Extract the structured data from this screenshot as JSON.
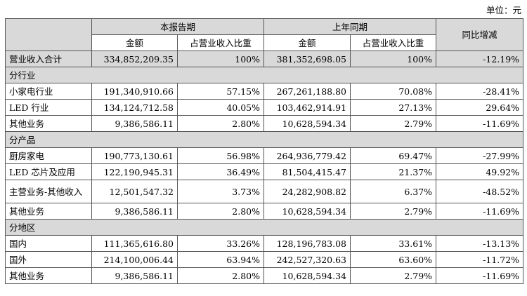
{
  "unit": "单位：元",
  "table": {
    "header": {
      "groups": [
        "本报告期",
        "上年同期"
      ],
      "columns": [
        "金额",
        "占营业收入比重",
        "金额",
        "占营业收入比重"
      ],
      "change": "同比增减"
    },
    "rows": [
      [
        "营业收入合计",
        "334,852,209.35",
        "100%",
        "381,352,698.05",
        "100%",
        "-12.19%"
      ],
      [
        "分行业"
      ],
      [
        "小家电行业",
        "191,340,910.66",
        "57.15%",
        "267,261,188.80",
        "70.08%",
        "-28.41%"
      ],
      [
        "LED 行业",
        "134,124,712.58",
        "40.05%",
        "103,462,914.91",
        "27.13%",
        "29.64%"
      ],
      [
        "其他业务",
        "9,386,586.11",
        "2.80%",
        "10,628,594.34",
        "2.79%",
        "-11.69%"
      ],
      [
        "分产品"
      ],
      [
        "厨房家电",
        "190,773,130.61",
        "56.98%",
        "264,936,779.42",
        "69.47%",
        "-27.99%"
      ],
      [
        "LED 芯片及应用",
        "122,190,945.31",
        "36.49%",
        "81,504,415.47",
        "21.37%",
        "49.92%"
      ],
      [
        "主营业务-其他收入",
        "12,501,547.32",
        "3.73%",
        "24,282,908.82",
        "6.37%",
        "-48.52%"
      ],
      [
        "其他业务",
        "9,386,586.11",
        "2.80%",
        "10,628,594.34",
        "2.79%",
        "-11.69%"
      ],
      [
        "分地区"
      ],
      [
        "国内",
        "111,365,616.80",
        "33.26%",
        "128,196,783.08",
        "33.61%",
        "-13.13%"
      ],
      [
        "国外",
        "214,100,006.44",
        "63.94%",
        "242,527,320.63",
        "63.60%",
        "-11.72%"
      ],
      [
        "其他业务",
        "9,386,586.11",
        "2.80%",
        "10,628,594.34",
        "2.79%",
        "-11.69%"
      ]
    ]
  }
}
